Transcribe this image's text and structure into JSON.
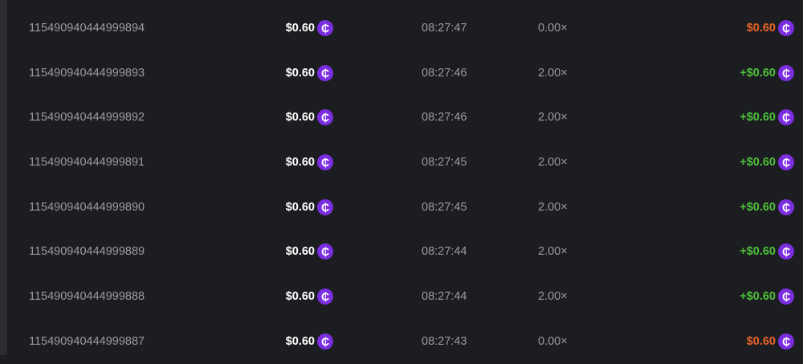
{
  "colors": {
    "loss": "#e8632a",
    "win": "#4ec13a",
    "coin": "#7b2ee0"
  },
  "coin_icon": "cent-coin-icon",
  "coin_glyph": "₵",
  "rows": [
    {
      "id": "115490940444999894",
      "bet": "$0.60",
      "time": "08:27:47",
      "multiplier": "0.00×",
      "payout": "$0.60",
      "win": false
    },
    {
      "id": "115490940444999893",
      "bet": "$0.60",
      "time": "08:27:46",
      "multiplier": "2.00×",
      "payout": "+$0.60",
      "win": true
    },
    {
      "id": "115490940444999892",
      "bet": "$0.60",
      "time": "08:27:46",
      "multiplier": "2.00×",
      "payout": "+$0.60",
      "win": true
    },
    {
      "id": "115490940444999891",
      "bet": "$0.60",
      "time": "08:27:45",
      "multiplier": "2.00×",
      "payout": "+$0.60",
      "win": true
    },
    {
      "id": "115490940444999890",
      "bet": "$0.60",
      "time": "08:27:45",
      "multiplier": "2.00×",
      "payout": "+$0.60",
      "win": true
    },
    {
      "id": "115490940444999889",
      "bet": "$0.60",
      "time": "08:27:44",
      "multiplier": "2.00×",
      "payout": "+$0.60",
      "win": true
    },
    {
      "id": "115490940444999888",
      "bet": "$0.60",
      "time": "08:27:44",
      "multiplier": "2.00×",
      "payout": "+$0.60",
      "win": true
    },
    {
      "id": "115490940444999887",
      "bet": "$0.60",
      "time": "08:27:43",
      "multiplier": "0.00×",
      "payout": "$0.60",
      "win": false
    }
  ]
}
